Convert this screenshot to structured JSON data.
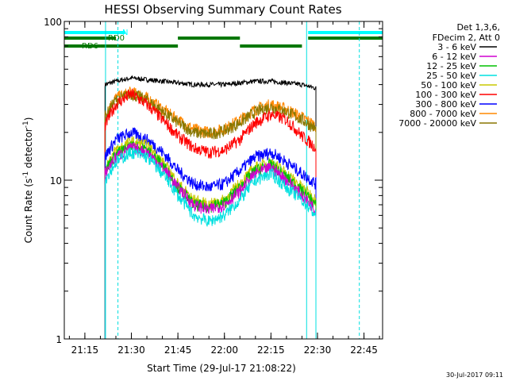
{
  "chart_data": {
    "type": "line",
    "title": "HESSI Observing Summary Count Rates",
    "xlabel": "Start Time (29-Jul-17 21:08:22)",
    "ylabel": "Count Rate (s⁻¹ detector⁻¹)",
    "ylabel_main": "Count Rate (s",
    "ylabel_sup1": "-1",
    "ylabel_mid": " detector",
    "ylabel_sup2": "-1",
    "ylabel_end": ")",
    "y_scale": "log",
    "ylim": [
      1,
      100
    ],
    "xlim": [
      "21:08:22",
      "22:51:00"
    ],
    "x_ticks": [
      "21:15",
      "21:30",
      "21:45",
      "22:00",
      "22:15",
      "22:30",
      "22:45"
    ],
    "y_ticks": [
      "1",
      "10",
      "100"
    ],
    "grid": false,
    "legend_position": "right",
    "legend_header": [
      "Det 1,3,6,",
      "FDecim 2, Att 0"
    ],
    "footer_date": "30-Jul-2017 09:11",
    "flags": {
      "N": {
        "label": "N",
        "color": "#00ffff",
        "segments": [
          [
            "21:08:22",
            "21:28:00"
          ],
          [
            "22:27:00",
            "22:51:00"
          ]
        ]
      },
      "RD0": {
        "label": "RD0",
        "color": "#007700",
        "segments": [
          [
            "21:08:22",
            "21:25:00"
          ],
          [
            "21:45:00",
            "22:05:00"
          ],
          [
            "22:27:00",
            "22:51:00"
          ]
        ]
      },
      "RD6": {
        "label": "RD6",
        "color": "#007700",
        "segments": [
          [
            "21:08:22",
            "21:20:00"
          ],
          [
            "21:20:00",
            "21:45:00"
          ],
          [
            "22:05:00",
            "22:25:00"
          ]
        ]
      }
    },
    "markers": {
      "solid": [
        "21:21:40",
        "22:26:30"
      ],
      "dashed": [
        "21:25:40",
        "22:43:30"
      ]
    },
    "data_window": [
      "21:21:30",
      "22:29:30"
    ],
    "series": [
      {
        "name": "3 - 6 keV",
        "color": "#000000",
        "x": [
          "21:21:30",
          "21:25:00",
          "21:30:00",
          "21:35:00",
          "21:40:00",
          "21:45:00",
          "21:50:00",
          "21:55:00",
          "22:00:00",
          "22:05:00",
          "22:10:00",
          "22:15:00",
          "22:20:00",
          "22:25:00",
          "22:29:30"
        ],
        "y": [
          40,
          42,
          44,
          43,
          42,
          41,
          40,
          40,
          40,
          41,
          42,
          42,
          41,
          40,
          38
        ]
      },
      {
        "name": "6 - 12 keV",
        "color": "#d000d0",
        "x": [
          "21:21:30",
          "21:25:00",
          "21:30:00",
          "21:35:00",
          "21:40:00",
          "21:45:00",
          "21:50:00",
          "21:55:00",
          "22:00:00",
          "22:05:00",
          "22:10:00",
          "22:15:00",
          "22:20:00",
          "22:25:00",
          "22:29:30"
        ],
        "y": [
          11,
          14,
          16,
          15,
          12,
          9,
          7,
          6.5,
          7,
          8.5,
          11,
          12,
          10,
          8,
          6.5
        ]
      },
      {
        "name": "12 - 25 keV",
        "color": "#00c000",
        "x": [
          "21:21:30",
          "21:25:00",
          "21:30:00",
          "21:35:00",
          "21:40:00",
          "21:45:00",
          "21:50:00",
          "21:55:00",
          "22:00:00",
          "22:05:00",
          "22:10:00",
          "22:15:00",
          "22:20:00",
          "22:25:00",
          "22:29:30"
        ],
        "y": [
          11.5,
          14.5,
          16.5,
          15.5,
          12.5,
          9,
          7,
          6.8,
          7.2,
          9,
          11.5,
          12.5,
          10.5,
          8.5,
          7
        ]
      },
      {
        "name": "25 - 50 keV",
        "color": "#00e0e0",
        "x": [
          "21:21:30",
          "21:25:00",
          "21:30:00",
          "21:35:00",
          "21:40:00",
          "21:45:00",
          "21:50:00",
          "21:55:00",
          "22:00:00",
          "22:05:00",
          "22:10:00",
          "22:15:00",
          "22:20:00",
          "22:25:00",
          "22:29:30"
        ],
        "y": [
          10,
          13,
          15,
          14,
          11,
          8,
          6,
          5.5,
          6,
          7.5,
          10,
          11,
          9,
          7.5,
          6
        ]
      },
      {
        "name": "50 - 100 keV",
        "color": "#c8c800",
        "x": [
          "21:21:30",
          "21:25:00",
          "21:30:00",
          "21:35:00",
          "21:40:00",
          "21:45:00",
          "21:50:00",
          "21:55:00",
          "22:00:00",
          "22:05:00",
          "22:10:00",
          "22:15:00",
          "22:20:00",
          "22:25:00",
          "22:29:30"
        ],
        "y": [
          12,
          15.5,
          17.5,
          16.5,
          13,
          9.5,
          7.5,
          7,
          7.5,
          9.5,
          12,
          13,
          11,
          9,
          7.5
        ]
      },
      {
        "name": "100 - 300 keV",
        "color": "#ff0000",
        "x": [
          "21:21:30",
          "21:25:00",
          "21:30:00",
          "21:35:00",
          "21:40:00",
          "21:45:00",
          "21:50:00",
          "21:55:00",
          "22:00:00",
          "22:05:00",
          "22:10:00",
          "22:15:00",
          "22:20:00",
          "22:25:00",
          "22:29:30"
        ],
        "y": [
          22,
          30,
          35,
          30,
          24,
          19,
          16,
          15,
          15.5,
          18,
          23,
          26,
          24,
          19,
          16
        ]
      },
      {
        "name": "300 - 800 keV",
        "color": "#0000ff",
        "x": [
          "21:21:30",
          "21:25:00",
          "21:30:00",
          "21:35:00",
          "21:40:00",
          "21:45:00",
          "21:50:00",
          "21:55:00",
          "22:00:00",
          "22:05:00",
          "22:10:00",
          "22:15:00",
          "22:20:00",
          "22:25:00",
          "22:29:30"
        ],
        "y": [
          14,
          18,
          20,
          18,
          15,
          11.5,
          9.5,
          9,
          9.5,
          11.5,
          14,
          15,
          13,
          11,
          9.5
        ]
      },
      {
        "name": "800 - 7000 keV",
        "color": "#ff8800",
        "x": [
          "21:21:30",
          "21:25:00",
          "21:30:00",
          "21:35:00",
          "21:40:00",
          "21:45:00",
          "21:50:00",
          "21:55:00",
          "22:00:00",
          "22:05:00",
          "22:10:00",
          "22:15:00",
          "22:20:00",
          "22:25:00",
          "22:29:30"
        ],
        "y": [
          26,
          33,
          36,
          33,
          28,
          24,
          21,
          20,
          21,
          24,
          28,
          30,
          28,
          25,
          22
        ]
      },
      {
        "name": "7000 - 20000 keV",
        "color": "#887700",
        "x": [
          "21:21:30",
          "21:25:00",
          "21:30:00",
          "21:35:00",
          "21:40:00",
          "21:45:00",
          "21:50:00",
          "21:55:00",
          "22:00:00",
          "22:05:00",
          "22:10:00",
          "22:15:00",
          "22:20:00",
          "22:25:00",
          "22:29:30"
        ],
        "y": [
          25,
          32,
          35,
          32,
          27,
          23,
          20,
          19.5,
          20.5,
          23,
          27,
          29,
          27,
          24,
          21
        ]
      }
    ]
  }
}
